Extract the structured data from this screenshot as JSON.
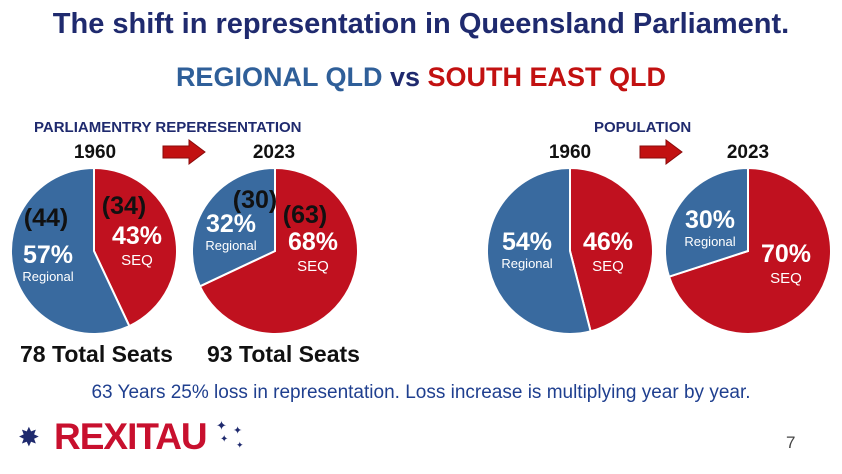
{
  "title": "The shift in representation in Queensland Parliament.",
  "subtitle": {
    "left": "REGIONAL QLD",
    "mid": "vs",
    "right": "SOUTH EAST QLD"
  },
  "sections": {
    "parliament": "PARLIAMENTRY REPERESENTATION",
    "population": "POPULATION"
  },
  "years": {
    "from": "1960",
    "to": "2023"
  },
  "colors": {
    "regional": "#396a9f",
    "seq": "#c0111f",
    "arrow": "#c21111",
    "border": "#ffffff"
  },
  "icons": {
    "arrow": "right-arrow-icon",
    "stars": "stars-icon"
  },
  "seats_1960": "78 Total Seats",
  "seats_2023": "93 Total Seats",
  "footer": "63 Years 25% loss in representation. Loss increase is multiplying year by year.",
  "page_number": "7",
  "logo": "REXITAU",
  "chart_data": [
    {
      "type": "pie",
      "group": "PARLIAMENTRY REPERESENTATION",
      "year": "1960",
      "slices": [
        {
          "name": "SEQ",
          "value": 43,
          "label": "43%",
          "count": "(34)"
        },
        {
          "name": "Regional",
          "value": 57,
          "label": "57%",
          "count": "(44)"
        }
      ]
    },
    {
      "type": "pie",
      "group": "PARLIAMENTRY REPERESENTATION",
      "year": "2023",
      "slices": [
        {
          "name": "SEQ",
          "value": 68,
          "label": "68%",
          "count": "(63)"
        },
        {
          "name": "Regional",
          "value": 32,
          "label": "32%",
          "count": "(30)"
        }
      ]
    },
    {
      "type": "pie",
      "group": "POPULATION",
      "year": "1960",
      "slices": [
        {
          "name": "SEQ",
          "value": 46,
          "label": "46%"
        },
        {
          "name": "Regional",
          "value": 54,
          "label": "54%"
        }
      ]
    },
    {
      "type": "pie",
      "group": "POPULATION",
      "year": "2023",
      "slices": [
        {
          "name": "SEQ",
          "value": 70,
          "label": "70%"
        },
        {
          "name": "Regional",
          "value": 30,
          "label": "30%"
        }
      ]
    }
  ]
}
